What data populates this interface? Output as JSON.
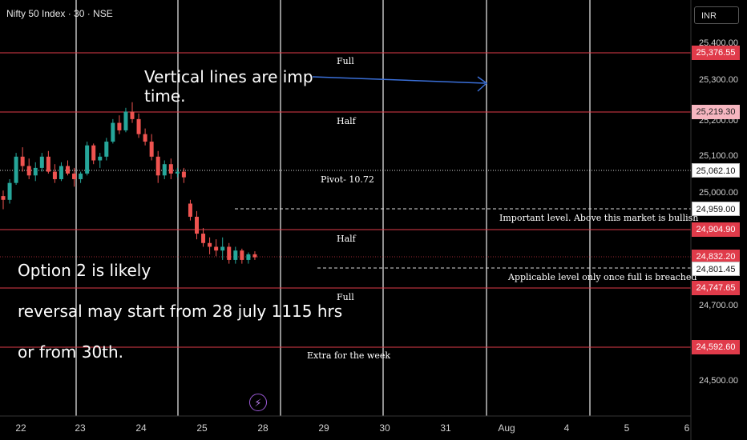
{
  "header": {
    "symbol": "Nifty 50 Index · 30 · NSE",
    "currency": "INR"
  },
  "notes": {
    "vertical": "Vertical lines are imp time.",
    "option": "Option 2 is likely",
    "reversal": "reversal may start from 28 july 1115 hrs",
    "or30": "or from 30th."
  },
  "levels": {
    "full_top": "Full",
    "half_top": "Half",
    "pivot": "Pivot- 10.72",
    "important": "Important level. Above this market is bullish",
    "half_bottom": "Half",
    "applicable": "Applicable level only once full is breached",
    "full_bottom": "Full",
    "extra": "Extra for the week"
  },
  "price_axis": {
    "ticks": [
      "25,400.00",
      "25,300.00",
      "25,200.00",
      "25,100.00",
      "25,000.00",
      "24,700.00",
      "24,500.00"
    ],
    "tags": [
      "25,376.55",
      "25,219.30",
      "25,062.10",
      "24,959.00",
      "24,904.90",
      "24,832.20",
      "24,801.45",
      "24,747.65",
      "24,592.60"
    ]
  },
  "time_axis": [
    "22",
    "23",
    "24",
    "25",
    "28",
    "29",
    "30",
    "31",
    "Aug",
    "4",
    "5",
    "6"
  ],
  "colors": {
    "up": "#26a69a",
    "down": "#ef5350",
    "level_line": "#e03b4a",
    "arrow": "#3a6fd8",
    "bolt": "#9b59d6"
  },
  "chart_data": {
    "type": "candlestick",
    "series": [
      {
        "o": 24995,
        "h": 25010,
        "l": 24960,
        "c": 24985
      },
      {
        "o": 24985,
        "h": 25040,
        "l": 24975,
        "c": 25030
      },
      {
        "o": 25030,
        "h": 25110,
        "l": 25025,
        "c": 25100
      },
      {
        "o": 25100,
        "h": 25125,
        "l": 25060,
        "c": 25075
      },
      {
        "o": 25075,
        "h": 25095,
        "l": 25040,
        "c": 25050
      },
      {
        "o": 25050,
        "h": 25085,
        "l": 25035,
        "c": 25070
      },
      {
        "o": 25070,
        "h": 25110,
        "l": 25060,
        "c": 25100
      },
      {
        "o": 25100,
        "h": 25115,
        "l": 25055,
        "c": 25060
      },
      {
        "o": 25060,
        "h": 25080,
        "l": 25030,
        "c": 25040
      },
      {
        "o": 25040,
        "h": 25085,
        "l": 25035,
        "c": 25075
      },
      {
        "o": 25075,
        "h": 25090,
        "l": 25050,
        "c": 25055
      },
      {
        "o": 25055,
        "h": 25070,
        "l": 25020,
        "c": 25040
      },
      {
        "o": 25040,
        "h": 25060,
        "l": 25030,
        "c": 25055
      },
      {
        "o": 25055,
        "h": 25140,
        "l": 25050,
        "c": 25130
      },
      {
        "o": 25130,
        "h": 25135,
        "l": 25080,
        "c": 25090
      },
      {
        "o": 25090,
        "h": 25110,
        "l": 25070,
        "c": 25100
      },
      {
        "o": 25100,
        "h": 25150,
        "l": 25090,
        "c": 25140
      },
      {
        "o": 25140,
        "h": 25200,
        "l": 25135,
        "c": 25190
      },
      {
        "o": 25190,
        "h": 25210,
        "l": 25160,
        "c": 25170
      },
      {
        "o": 25170,
        "h": 25230,
        "l": 25165,
        "c": 25220
      },
      {
        "o": 25220,
        "h": 25245,
        "l": 25190,
        "c": 25200
      },
      {
        "o": 25200,
        "h": 25215,
        "l": 25150,
        "c": 25160
      },
      {
        "o": 25160,
        "h": 25175,
        "l": 25130,
        "c": 25140
      },
      {
        "o": 25140,
        "h": 25160,
        "l": 25090,
        "c": 25100
      },
      {
        "o": 25100,
        "h": 25115,
        "l": 25030,
        "c": 25050
      },
      {
        "o": 25050,
        "h": 25090,
        "l": 25040,
        "c": 25080
      },
      {
        "o": 25080,
        "h": 25095,
        "l": 25040,
        "c": 25055
      },
      {
        "o": 25055,
        "h": 25070,
        "l": 25045,
        "c": 25060
      },
      {
        "o": 25060,
        "h": 25070,
        "l": 25030,
        "c": 25045
      },
      {
        "o": 24975,
        "h": 24985,
        "l": 24930,
        "c": 24940
      },
      {
        "o": 24940,
        "h": 24955,
        "l": 24880,
        "c": 24895
      },
      {
        "o": 24895,
        "h": 24910,
        "l": 24860,
        "c": 24870
      },
      {
        "o": 24870,
        "h": 24885,
        "l": 24840,
        "c": 24860
      },
      {
        "o": 24860,
        "h": 24880,
        "l": 24835,
        "c": 24850
      },
      {
        "o": 24850,
        "h": 24885,
        "l": 24825,
        "c": 24860
      },
      {
        "o": 24860,
        "h": 24870,
        "l": 24815,
        "c": 24825
      },
      {
        "o": 24825,
        "h": 24860,
        "l": 24815,
        "c": 24850
      },
      {
        "o": 24850,
        "h": 24855,
        "l": 24815,
        "c": 24825
      },
      {
        "o": 24825,
        "h": 24845,
        "l": 24815,
        "c": 24840
      },
      {
        "o": 24840,
        "h": 24848,
        "l": 24825,
        "c": 24832
      }
    ]
  }
}
